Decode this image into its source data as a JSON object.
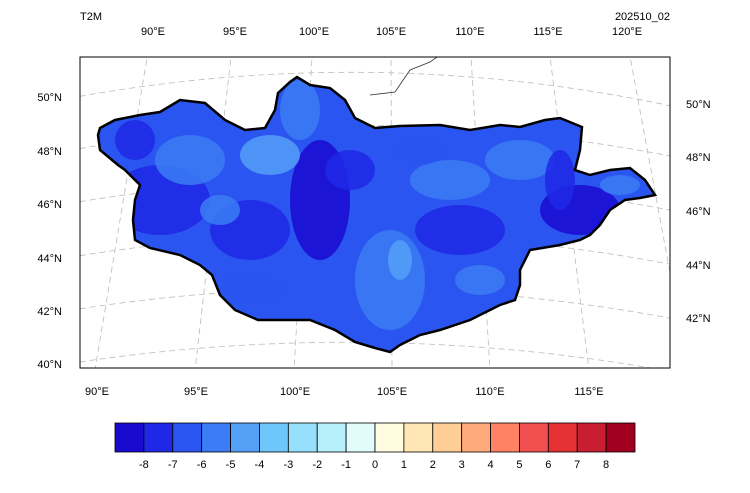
{
  "title": "T2M",
  "date_label": "202510_02",
  "top_lon_labels": [
    "90°E",
    "95°E",
    "100°E",
    "105°E",
    "110°E",
    "115°E",
    "120°E"
  ],
  "bottom_lon_labels": [
    "90°E",
    "95°E",
    "100°E",
    "105°E",
    "110°E",
    "115°E"
  ],
  "left_lat_labels": [
    "50°N",
    "48°N",
    "46°N",
    "44°N",
    "42°N",
    "40°N"
  ],
  "right_lat_labels": [
    "50°N",
    "48°N",
    "46°N",
    "44°N",
    "42°N"
  ],
  "colorbar": {
    "levels": [
      -8,
      -7,
      -6,
      -5,
      -4,
      -3,
      -2,
      -1,
      0,
      1,
      2,
      3,
      4,
      5,
      6,
      7,
      8
    ],
    "colors": [
      "#1a0ad0",
      "#1e28e6",
      "#2a55f0",
      "#3c7cf5",
      "#55a0f7",
      "#6ec6fa",
      "#96e0fb",
      "#b6f0fb",
      "#e2fbfb",
      "#fffbe0",
      "#ffe6b4",
      "#ffcd96",
      "#ffaa7a",
      "#ff8264",
      "#f25050",
      "#e63232",
      "#c81e32",
      "#a0001e"
    ]
  }
}
